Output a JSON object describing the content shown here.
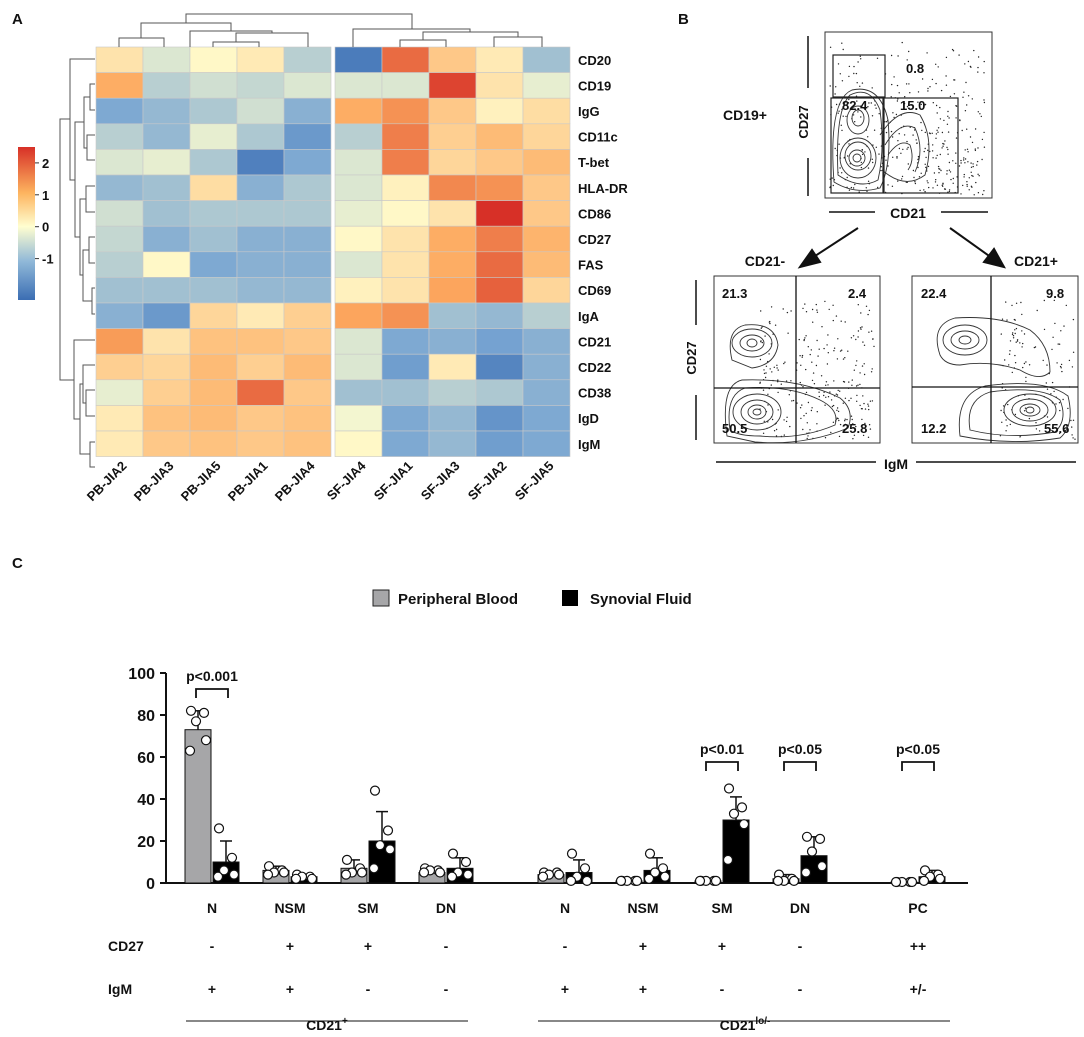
{
  "panel_a": {
    "letter": "A",
    "rows": [
      "CD20",
      "CD19",
      "IgG",
      "CD11c",
      "T-bet",
      "HLA-DR",
      "CD86",
      "CD27",
      "FAS",
      "CD69",
      "IgA",
      "CD21",
      "CD22",
      "CD38",
      "IgD",
      "IgM"
    ],
    "cols": [
      "PB-JIA2",
      "PB-JIA3",
      "PB-JIA5",
      "PB-JIA1",
      "PB-JIA4",
      "SF-JIA4",
      "SF-JIA1",
      "SF-JIA3",
      "SF-JIA2",
      "SF-JIA5"
    ],
    "matrix": [
      [
        0.4,
        -0.3,
        0.1,
        0.3,
        -0.6,
        -2.0,
        1.9,
        0.8,
        0.3,
        -0.8
      ],
      [
        1.2,
        -0.6,
        -0.4,
        -0.5,
        -0.3,
        -0.3,
        -0.3,
        2.3,
        0.4,
        -0.2
      ],
      [
        -1.1,
        -0.9,
        -0.7,
        -0.4,
        -1.0,
        1.2,
        1.5,
        0.8,
        0.2,
        0.5
      ],
      [
        -0.6,
        -0.9,
        -0.2,
        -0.7,
        -1.4,
        -0.6,
        1.7,
        0.7,
        1.0,
        0.6
      ],
      [
        -0.3,
        -0.2,
        -0.7,
        -1.9,
        -1.1,
        -0.3,
        1.7,
        0.6,
        0.8,
        1.0
      ],
      [
        -0.9,
        -0.8,
        0.5,
        -1.0,
        -0.7,
        -0.3,
        0.2,
        1.6,
        1.5,
        0.8
      ],
      [
        -0.4,
        -0.8,
        -0.7,
        -0.7,
        -0.7,
        -0.2,
        0.1,
        0.4,
        2.5,
        0.8
      ],
      [
        -0.5,
        -1.0,
        -0.8,
        -1.0,
        -1.0,
        0.1,
        0.4,
        1.2,
        1.7,
        1.1
      ],
      [
        -0.6,
        0.1,
        -1.1,
        -1.0,
        -1.0,
        -0.3,
        0.4,
        1.2,
        1.9,
        1.0
      ],
      [
        -0.8,
        -0.8,
        -0.8,
        -0.9,
        -0.9,
        0.2,
        0.4,
        1.3,
        2.0,
        0.6
      ],
      [
        -1.0,
        -1.4,
        0.6,
        0.3,
        0.7,
        1.3,
        1.5,
        -0.8,
        -0.9,
        -0.6
      ],
      [
        1.4,
        0.4,
        0.9,
        0.9,
        0.8,
        -0.3,
        -1.1,
        -1.0,
        -1.2,
        -1.0
      ],
      [
        0.7,
        0.6,
        1.0,
        0.7,
        1.0,
        -0.3,
        -1.3,
        0.3,
        -1.8,
        -1.0
      ],
      [
        -0.2,
        0.7,
        1.0,
        1.9,
        0.8,
        -0.8,
        -0.8,
        -0.6,
        -0.7,
        -1.0
      ],
      [
        0.3,
        0.9,
        1.0,
        0.8,
        0.9,
        -0.1,
        -1.1,
        -0.9,
        -1.5,
        -1.1
      ],
      [
        0.3,
        0.8,
        0.9,
        0.8,
        0.9,
        0.1,
        -1.1,
        -0.9,
        -1.3,
        -1.1
      ]
    ],
    "colorbar_ticks": [
      "2",
      "1",
      "0",
      "-1"
    ],
    "colorbar_range": [
      -2.3,
      2.5
    ],
    "colors": {
      "low": "#3b6db3",
      "mid": "#fffed0",
      "high": "#d73027"
    }
  },
  "panel_b": {
    "letter": "B",
    "top_plot": {
      "population": "CD19+",
      "y_label": "CD27",
      "x_label": "CD21",
      "gates": [
        "0.8",
        "82.4",
        "15.0"
      ]
    },
    "left_plot": {
      "title": "CD21-",
      "quadrants": [
        "21.3",
        "2.4",
        "50.5",
        "25.8"
      ]
    },
    "right_plot": {
      "title": "CD21+",
      "quadrants": [
        "22.4",
        "9.8",
        "12.2",
        "55.6"
      ]
    },
    "bottom_y_label": "CD27",
    "bottom_x_label": "IgM"
  },
  "panel_c": {
    "letter": "C",
    "chart_data": {
      "type": "bar",
      "title": "",
      "xlabel": "",
      "ylabel": "",
      "ylim": [
        0,
        100
      ],
      "yticks": [
        "100",
        "80",
        "60",
        "40",
        "20",
        "0"
      ],
      "legend": [
        "Peripheral Blood",
        "Synovial Fluid"
      ],
      "categories": [
        "N",
        "NSM",
        "SM",
        "DN",
        "N",
        "NSM",
        "SM",
        "DN",
        "PC"
      ],
      "series": [
        {
          "name": "Peripheral Blood",
          "color": "#a6a6a8",
          "values": [
            73,
            6,
            7,
            5,
            4,
            1,
            1,
            2,
            0.5
          ],
          "sd": [
            9,
            2,
            4,
            1.5,
            1.5,
            0.5,
            0.5,
            2,
            0.3
          ],
          "points": [
            [
              82,
              81,
              77,
              68,
              63
            ],
            [
              8,
              6,
              5,
              5,
              4
            ],
            [
              11,
              7,
              5,
              5,
              4
            ],
            [
              7,
              6,
              6,
              5,
              5
            ],
            [
              5,
              5,
              4,
              4,
              3
            ],
            [
              1,
              1,
              1,
              1,
              1
            ],
            [
              1,
              1,
              1,
              1,
              1
            ],
            [
              4,
              2,
              1,
              1,
              1
            ],
            [
              0.5,
              0.5,
              0.5,
              0.5,
              0.5
            ]
          ]
        },
        {
          "name": "Synovial Fluid",
          "color": "#000000",
          "values": [
            10,
            3,
            20,
            7,
            5,
            6,
            30,
            13,
            3
          ],
          "sd": [
            10,
            1,
            14,
            5,
            6,
            6,
            11,
            9,
            3
          ],
          "points": [
            [
              26,
              12,
              6,
              4,
              3
            ],
            [
              4,
              3,
              3,
              2,
              2
            ],
            [
              44,
              25,
              18,
              16,
              7
            ],
            [
              14,
              10,
              5,
              4,
              3
            ],
            [
              14,
              7,
              3,
              1,
              1
            ],
            [
              14,
              7,
              5,
              3,
              2
            ],
            [
              45,
              36,
              33,
              28,
              11
            ],
            [
              22,
              21,
              15,
              8,
              5
            ],
            [
              6,
              4,
              3,
              2,
              1
            ]
          ]
        }
      ],
      "comparisons": [
        {
          "group": 0,
          "label": "p<0.001"
        },
        {
          "group": 6,
          "label": "p<0.01"
        },
        {
          "group": 7,
          "label": "p<0.05"
        },
        {
          "group": 8,
          "label": "p<0.05"
        }
      ]
    },
    "marker_rows": [
      {
        "label": "CD27",
        "values": [
          "-",
          "+",
          "+",
          "-",
          "-",
          "+",
          "+",
          "-",
          "++"
        ]
      },
      {
        "label": "IgM",
        "values": [
          "+",
          "+",
          "-",
          "-",
          "+",
          "+",
          "-",
          "-",
          "+/-"
        ]
      }
    ],
    "group_labels": [
      {
        "base": "CD21",
        "sup": "+"
      },
      {
        "base": "CD21",
        "sup": "lo/-"
      }
    ]
  }
}
